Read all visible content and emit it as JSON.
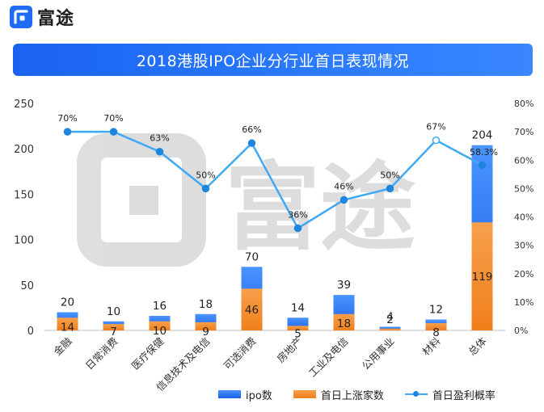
{
  "brand": {
    "name": "富途"
  },
  "chart_data": {
    "type": "bar+line",
    "title": "2018港股IPO企业分行业首日表现情况",
    "categories": [
      "金融",
      "日常消费",
      "医疗保健",
      "信息技术及电信",
      "可选消费",
      "房地产",
      "工业及电信",
      "公用事业",
      "材料",
      "总体"
    ],
    "series": [
      {
        "name": "ipo数",
        "kind": "bar",
        "axis": "left",
        "values": [
          20,
          10,
          16,
          18,
          70,
          14,
          39,
          4,
          12,
          204
        ]
      },
      {
        "name": "首日上涨家数",
        "kind": "bar",
        "axis": "left",
        "values": [
          14,
          7,
          10,
          9,
          46,
          5,
          18,
          2,
          8,
          119
        ]
      },
      {
        "name": "首日盈利概率",
        "kind": "line",
        "axis": "right",
        "values": [
          70,
          70,
          63,
          50,
          66,
          36,
          46,
          50,
          67,
          58.3
        ],
        "labels": [
          "70%",
          "70%",
          "63%",
          "50%",
          "66%",
          "36%",
          "46%",
          "50%",
          "67%",
          "58.3%"
        ]
      }
    ],
    "y_left": {
      "ylim": [
        0,
        250
      ],
      "ticks": [
        "0",
        "50",
        "100",
        "150",
        "200",
        "250"
      ]
    },
    "y_right": {
      "ylim": [
        0,
        80
      ],
      "ticks": [
        "0%",
        "10%",
        "20%",
        "30%",
        "40%",
        "50%",
        "60%",
        "70%",
        "80%"
      ]
    },
    "legend_position": "bottom",
    "grid": false
  },
  "colors": {
    "bar_total": "#1a5fe8",
    "bar_total_light": "#4a94ff",
    "bar_up": "#f07f1a",
    "bar_up_light": "#f7a04c",
    "line": "#3fa9f5",
    "marker": "#1f86e0",
    "title_bg": "#1f6bf5"
  }
}
